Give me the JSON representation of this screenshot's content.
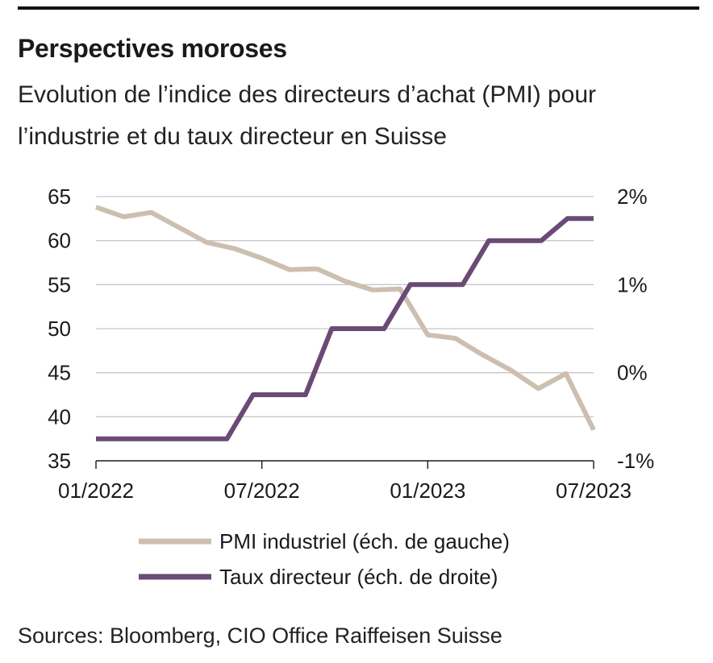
{
  "header": {
    "title": "Perspectives moroses",
    "subtitle": "Evolution de l’indice des directeurs d’achat (PMI) pour l’industrie et du taux directeur en Suisse"
  },
  "footer": {
    "source": "Sources: Bloomberg, CIO Office Raiffeisen Suisse"
  },
  "colors": {
    "pmi": "#cdbfb0",
    "rate": "#6b4a77",
    "grid": "#c8c8c8",
    "axis": "#1a1a1a"
  },
  "chart_data": {
    "type": "line",
    "title": "Perspectives moroses",
    "x_tick_labels": [
      "01/2022",
      "07/2022",
      "01/2023",
      "07/2023"
    ],
    "x_tick_index": [
      0,
      6,
      12,
      18
    ],
    "y_left": {
      "ylim": [
        35,
        65
      ],
      "ticks": [
        65,
        60,
        55,
        50,
        45,
        40,
        35
      ]
    },
    "y_right": {
      "ylim": [
        -1,
        2
      ],
      "ticks": [
        2,
        1,
        0,
        -1
      ],
      "tick_labels": [
        "2%",
        "1%",
        "0%",
        "-1%"
      ]
    },
    "grid": true,
    "legend_position": "bottom",
    "series": [
      {
        "name": "PMI industriel (éch. de gauche)",
        "axis": "left",
        "x": [
          "01/2022",
          "02/2022",
          "03/2022",
          "04/2022",
          "05/2022",
          "06/2022",
          "07/2022",
          "08/2022",
          "09/2022",
          "10/2022",
          "11/2022",
          "12/2022",
          "01/2023",
          "02/2023",
          "03/2023",
          "04/2023",
          "05/2023",
          "06/2023",
          "07/2023"
        ],
        "values": [
          63.8,
          62.7,
          63.2,
          61.5,
          59.8,
          59.1,
          58.0,
          56.7,
          56.8,
          55.4,
          54.4,
          54.5,
          49.3,
          48.9,
          47.0,
          45.3,
          43.2,
          44.9,
          38.5
        ]
      },
      {
        "name": "Taux directeur (éch. de droite)",
        "axis": "right",
        "step": true,
        "values": [
          -0.75,
          -0.75,
          -0.75,
          -0.75,
          -0.75,
          -0.75,
          -0.25,
          -0.25,
          -0.25,
          0.5,
          0.5,
          0.5,
          1.0,
          1.0,
          1.0,
          1.5,
          1.5,
          1.5,
          1.75,
          1.75
        ]
      }
    ]
  }
}
